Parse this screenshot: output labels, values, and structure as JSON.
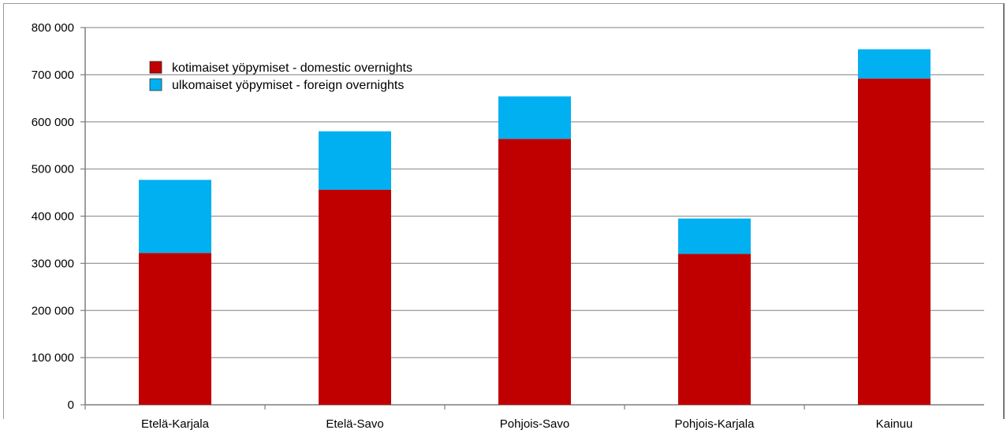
{
  "chart_data": {
    "type": "bar",
    "stacked": true,
    "categories": [
      "Etelä-Karjala",
      "Etelä-Savo",
      "Pohjois-Savo",
      "Pohjois-Karjala",
      "Kainuu"
    ],
    "series": [
      {
        "name": "kotimaiset yöpymiset - domestic overnights",
        "color": "#c00000",
        "values": [
          322000,
          456000,
          564000,
          320000,
          692000
        ]
      },
      {
        "name": "ulkomaiset yöpymiset - foreign overnights",
        "color": "#00b0f0",
        "values": [
          155000,
          124000,
          90000,
          75000,
          62000
        ]
      }
    ],
    "ylim": [
      0,
      800000
    ],
    "yticks": [
      0,
      100000,
      200000,
      300000,
      400000,
      500000,
      600000,
      700000,
      800000
    ],
    "ytick_labels": [
      "0",
      "100 000",
      "200 000",
      "300 000",
      "400 000",
      "500 000",
      "600 000",
      "700 000",
      "800 000"
    ],
    "grid": true,
    "legend_position": "top-left"
  }
}
